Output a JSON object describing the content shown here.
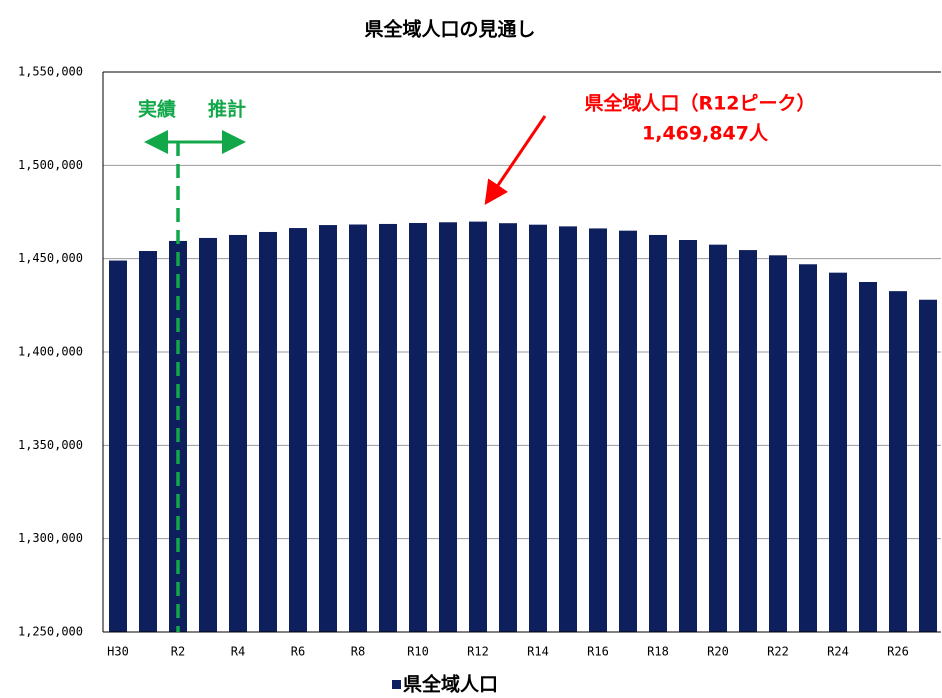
{
  "chart_data": {
    "type": "bar",
    "title": "県全域人口の見通し",
    "categories": [
      "H30",
      null,
      "R2",
      null,
      "R4",
      null,
      "R6",
      null,
      "R8",
      null,
      "R10",
      null,
      "R12",
      null,
      "R14",
      null,
      "R16",
      null,
      "R18",
      null,
      "R20",
      null,
      "R22",
      null,
      "R24",
      null,
      "R26",
      null
    ],
    "series": [
      {
        "name": "県全域人口",
        "color": "#0d1f5c",
        "values": [
          1449000,
          1454100,
          1459500,
          1461100,
          1462700,
          1464300,
          1466400,
          1468000,
          1468300,
          1468600,
          1469100,
          1469500,
          1469847,
          1469000,
          1468200,
          1467300,
          1466200,
          1465000,
          1462700,
          1460000,
          1457500,
          1454600,
          1451800,
          1447000,
          1442500,
          1437500,
          1432600,
          1428000
        ]
      }
    ],
    "ylim": [
      1250000,
      1550000
    ],
    "yticks": [
      {
        "value": 1250000,
        "label": "1,250,000"
      },
      {
        "value": 1300000,
        "label": "1,300,000"
      },
      {
        "value": 1350000,
        "label": "1,350,000"
      },
      {
        "value": 1400000,
        "label": "1,400,000"
      },
      {
        "value": 1450000,
        "label": "1,450,000"
      },
      {
        "value": 1500000,
        "label": "1,500,000"
      },
      {
        "value": 1550000,
        "label": "1,550,000"
      }
    ],
    "grid": true,
    "legend": "bottom",
    "annotations": {
      "actual": "実績",
      "forecast": "推計",
      "peak_label": "県全域人口（R12ピーク）",
      "peak_value": "1,469,847人"
    }
  }
}
